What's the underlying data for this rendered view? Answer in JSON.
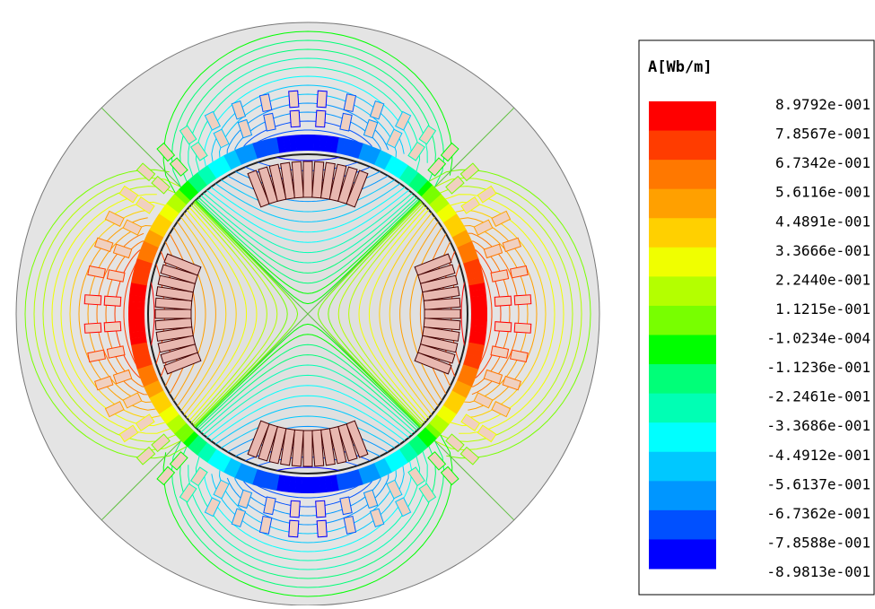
{
  "legend": {
    "title": "A[Wb/m]",
    "labels": [
      "8.9792e-001",
      "7.8567e-001",
      "6.7342e-001",
      "5.6116e-001",
      "4.4891e-001",
      "3.3666e-001",
      "2.2440e-001",
      "1.1215e-001",
      "-1.0234e-004",
      "-1.1236e-001",
      "-2.2461e-001",
      "-3.3686e-001",
      "-4.4912e-001",
      "-5.6137e-001",
      "-6.7362e-001",
      "-7.8588e-001",
      "-8.9813e-001"
    ]
  }
}
